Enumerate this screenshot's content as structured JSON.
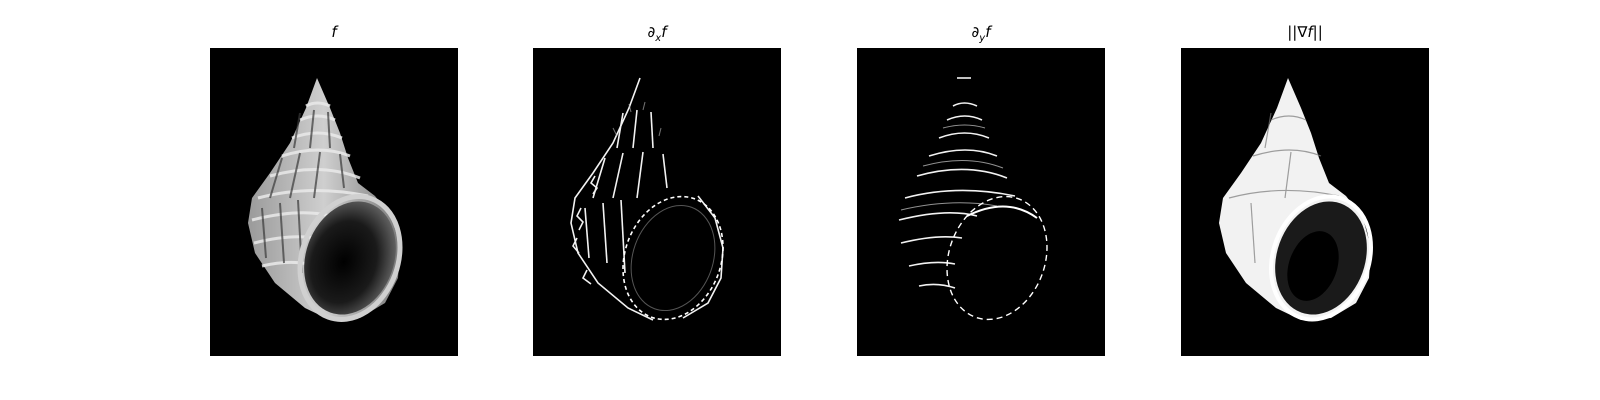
{
  "panels": [
    {
      "id": "f",
      "title_main": "f",
      "title_sub": "",
      "title_tail": "",
      "mode": "intensity"
    },
    {
      "id": "dxf",
      "title_main": "∂",
      "title_sub": "x",
      "title_tail": "f",
      "mode": "dx"
    },
    {
      "id": "dyf",
      "title_main": "∂",
      "title_sub": "y",
      "title_tail": "f",
      "mode": "dy"
    },
    {
      "id": "gradmag",
      "title_main": "||∇f||",
      "title_sub": "",
      "title_tail": "",
      "mode": "magnitude"
    }
  ],
  "colors": {
    "background": "#ffffff",
    "frame": "#000000",
    "shell_light": "#d8d8d8",
    "shell_mid": "#8a8a8a",
    "aperture_dark": "#111111",
    "edge_white": "#ffffff"
  }
}
